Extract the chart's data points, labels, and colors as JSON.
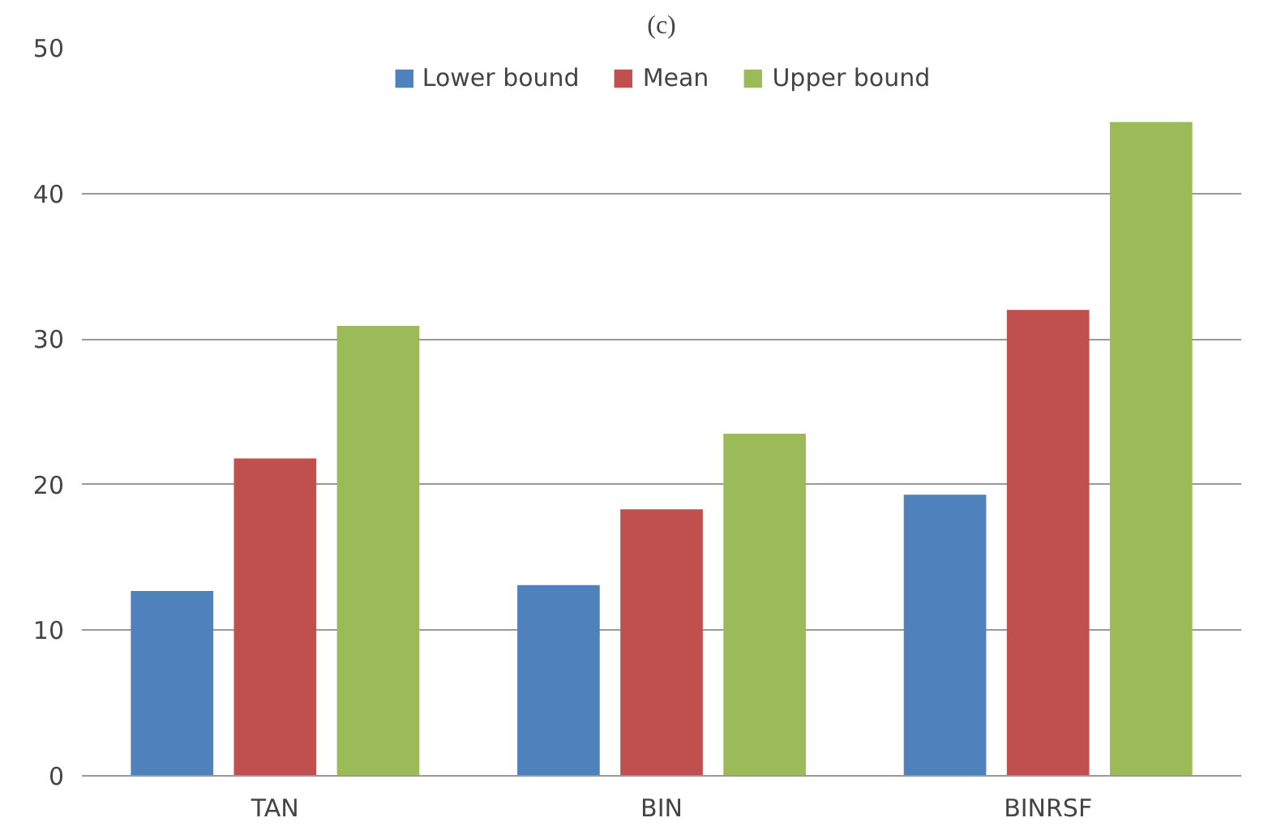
{
  "chart_data": {
    "type": "bar",
    "title": "(c)",
    "categories": [
      "TAN",
      "BIN",
      "BINRSF"
    ],
    "series": [
      {
        "name": "Lower bound",
        "color": "#4f81bd",
        "values": [
          12.7,
          13.1,
          19.3
        ]
      },
      {
        "name": "Mean",
        "color": "#c0504d",
        "values": [
          21.8,
          18.3,
          32.0
        ]
      },
      {
        "name": "Upper bound",
        "color": "#9bbb59",
        "values": [
          30.9,
          23.5,
          44.9
        ]
      }
    ],
    "ylim": [
      0,
      50
    ],
    "yticks": [
      0,
      10,
      20,
      30,
      40,
      50
    ],
    "grid": "y",
    "legend": "top"
  }
}
